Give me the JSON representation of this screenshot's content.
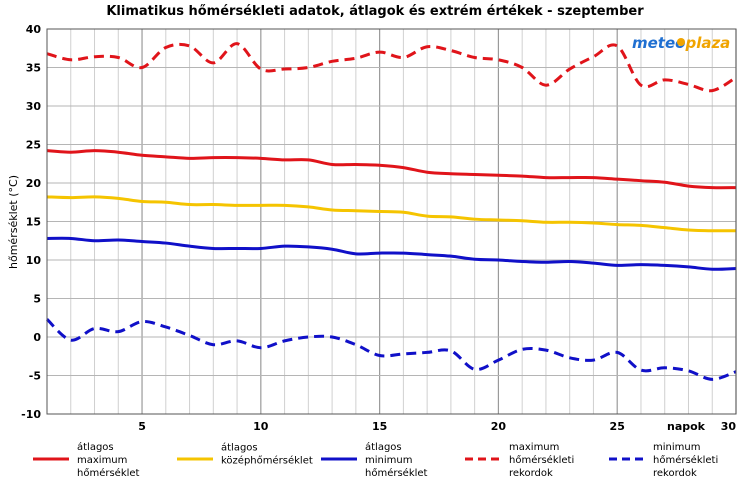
{
  "chart_data": {
    "type": "line",
    "title": "Klimatikus hőmérsékleti adatok, átlagok és extrém értékek - szeptember",
    "xlabel": "napok",
    "ylabel": "hőmérséklet (°C)",
    "xlim": [
      1,
      30
    ],
    "ylim": [
      -10,
      40
    ],
    "x_ticks": [
      5,
      10,
      15,
      20,
      25,
      30
    ],
    "y_ticks": [
      -10,
      -5,
      0,
      5,
      10,
      15,
      20,
      25,
      30,
      35,
      40
    ],
    "grid": true,
    "legend_position": "bottom",
    "x": [
      1,
      2,
      3,
      4,
      5,
      6,
      7,
      8,
      9,
      10,
      11,
      12,
      13,
      14,
      15,
      16,
      17,
      18,
      19,
      20,
      21,
      22,
      23,
      24,
      25,
      26,
      27,
      28,
      29,
      30
    ],
    "series": [
      {
        "name": "átlagos maximum hőmérséklet",
        "style": "solid",
        "color": "#e0141a",
        "values": [
          24.2,
          24.0,
          24.2,
          24.0,
          23.6,
          23.4,
          23.2,
          23.3,
          23.3,
          23.2,
          23.0,
          23.0,
          22.4,
          22.4,
          22.3,
          22.0,
          21.4,
          21.2,
          21.1,
          21.0,
          20.9,
          20.7,
          20.7,
          20.7,
          20.5,
          20.3,
          20.1,
          19.6,
          19.4,
          19.4
        ]
      },
      {
        "name": "átlagos középhőmérséklet",
        "style": "solid",
        "color": "#f5c400",
        "values": [
          18.2,
          18.1,
          18.2,
          18.0,
          17.6,
          17.5,
          17.2,
          17.2,
          17.1,
          17.1,
          17.1,
          16.9,
          16.5,
          16.4,
          16.3,
          16.2,
          15.7,
          15.6,
          15.3,
          15.2,
          15.1,
          14.9,
          14.9,
          14.8,
          14.6,
          14.5,
          14.2,
          13.9,
          13.8,
          13.8
        ]
      },
      {
        "name": "átlagos minimum hőmérséklet",
        "style": "solid",
        "color": "#1010c8",
        "values": [
          12.8,
          12.8,
          12.5,
          12.6,
          12.4,
          12.2,
          11.8,
          11.5,
          11.5,
          11.5,
          11.8,
          11.7,
          11.4,
          10.8,
          10.9,
          10.9,
          10.7,
          10.5,
          10.1,
          10.0,
          9.8,
          9.7,
          9.8,
          9.6,
          9.3,
          9.4,
          9.3,
          9.1,
          8.8,
          8.9
        ]
      },
      {
        "name": "maximum hőmérsékleti rekordok",
        "style": "dashed",
        "color": "#e0141a",
        "values": [
          36.8,
          36.0,
          36.4,
          36.3,
          35.0,
          37.6,
          37.8,
          35.6,
          38.1,
          34.8,
          34.8,
          35.0,
          35.8,
          36.2,
          37.0,
          36.3,
          37.7,
          37.2,
          36.3,
          36.0,
          35.0,
          32.7,
          34.8,
          36.4,
          37.8,
          32.7,
          33.4,
          32.8,
          32.0,
          33.7
        ]
      },
      {
        "name": "minimum hőmérsékleti rekordok",
        "style": "dashed",
        "color": "#1010c8",
        "values": [
          2.3,
          -0.4,
          1.1,
          0.7,
          2.0,
          1.3,
          0.2,
          -1.0,
          -0.5,
          -1.4,
          -0.5,
          0.0,
          0.0,
          -1.0,
          -2.4,
          -2.2,
          -2.0,
          -1.8,
          -4.2,
          -3.0,
          -1.6,
          -1.7,
          -2.7,
          -3.0,
          -2.0,
          -4.3,
          -4.0,
          -4.4,
          -5.5,
          -4.5
        ]
      }
    ]
  },
  "legend": [
    {
      "key": "avg_max",
      "lines": [
        "átlagos",
        "maximum",
        "hőmérséklet"
      ]
    },
    {
      "key": "avg_mid",
      "lines": [
        "átlagos",
        "középhőmérséklet"
      ]
    },
    {
      "key": "avg_min",
      "lines": [
        "átlagos",
        "minimum",
        "hőmérséklet"
      ]
    },
    {
      "key": "rec_max",
      "lines": [
        "maximum",
        "hőmérsékleti",
        "rekordok"
      ]
    },
    {
      "key": "rec_min",
      "lines": [
        "minimum",
        "hőmérsékleti",
        "rekordok"
      ]
    }
  ],
  "brand": {
    "part1": "meteo",
    "part2": "plaza"
  }
}
